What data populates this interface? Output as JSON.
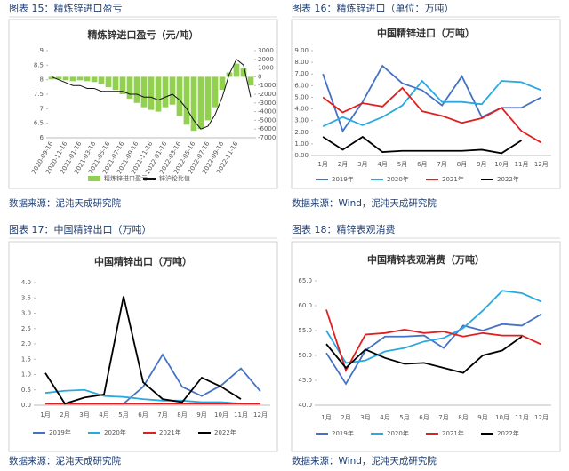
{
  "chart_data": [
    {
      "type": "combo",
      "caption": "图表 15：精炼锌进口盈亏",
      "title": "精炼锌进口盈亏（元/吨）",
      "source": "数据来源：泥沌天成研究院",
      "categories": [
        "2020-09-16",
        null,
        "2020-11-16",
        null,
        "2021-01-16",
        null,
        "2021-03-16",
        null,
        "2021-05-16",
        null,
        "2021-07-16",
        null,
        "2021-09-16",
        null,
        "2021-11-16",
        null,
        "2022-01-16",
        null,
        "2022-03-16",
        null,
        "2022-05-16",
        null,
        "2022-07-16",
        null,
        "2022-09-16",
        null,
        "2022-11-16",
        null,
        null
      ],
      "ylim": [
        6,
        9
      ],
      "yticks": [
        6,
        6.5,
        7,
        7.5,
        8,
        8.5,
        9
      ],
      "y2lim": [
        -7000,
        3000
      ],
      "y2ticks": [
        3000,
        2000,
        1000,
        0,
        -1000,
        -2000,
        -3000,
        -4000,
        -5000,
        -6000,
        -7000
      ],
      "series": [
        {
          "name": "精炼锌进口盈亏",
          "kind": "bar",
          "axis": "y2",
          "color": "#92d050",
          "values": [
            -300,
            -300,
            -400,
            -500,
            -400,
            -500,
            -600,
            -800,
            -1200,
            -1500,
            -2000,
            -2500,
            -3000,
            -3500,
            -3800,
            -4000,
            -3500,
            -3200,
            -4500,
            -5500,
            -6200,
            -6000,
            -5000,
            -3500,
            -1500,
            500,
            1500,
            1000,
            -1000
          ]
        },
        {
          "name": "锌沪伦比值",
          "kind": "line",
          "color": "#111111",
          "values": [
            8.1,
            8.0,
            7.9,
            7.8,
            7.8,
            7.7,
            7.7,
            7.6,
            7.6,
            7.6,
            7.6,
            7.5,
            7.5,
            7.4,
            7.4,
            7.3,
            7.4,
            7.5,
            7.3,
            7.0,
            6.6,
            6.3,
            6.4,
            6.8,
            7.4,
            8.2,
            8.7,
            8.5,
            7.4
          ]
        }
      ]
    },
    {
      "type": "line",
      "caption": "图表 16：精炼锌进口（单位：万吨）",
      "title": "中国精锌进口（万吨）",
      "source": "数据来源：Wind，泥沌天成研究院",
      "categories": [
        "1月",
        "2月",
        "3月",
        "4月",
        "5月",
        "6月",
        "7月",
        "8月",
        "9月",
        "10月",
        "11月",
        "12月"
      ],
      "ylim": [
        0,
        9
      ],
      "yticks": [
        {
          "value": 0,
          "label": "0.00"
        },
        {
          "value": 1,
          "label": "1.00"
        },
        {
          "value": 2,
          "label": "2.00"
        },
        {
          "value": 3,
          "label": "3.00"
        },
        {
          "value": 4,
          "label": "4.00"
        },
        {
          "value": 5,
          "label": "5.00"
        },
        {
          "value": 6,
          "label": "6.00"
        },
        {
          "value": 7,
          "label": "7.00"
        },
        {
          "value": 8,
          "label": "8.00"
        },
        {
          "value": 9,
          "label": "9.00"
        }
      ],
      "series": [
        {
          "name": "2019年",
          "color": "#4472c4",
          "values": [
            7.0,
            2.1,
            4.6,
            7.7,
            6.2,
            5.6,
            4.3,
            6.8,
            3.3,
            4.1,
            4.1,
            5.0
          ]
        },
        {
          "name": "2020年",
          "color": "#2aa9e0",
          "values": [
            2.5,
            3.3,
            2.6,
            3.3,
            4.3,
            6.4,
            4.6,
            4.6,
            4.4,
            6.4,
            6.3,
            5.6
          ]
        },
        {
          "name": "2021年",
          "color": "#e02020",
          "values": [
            5.0,
            3.7,
            4.5,
            4.2,
            5.8,
            3.8,
            3.4,
            2.8,
            3.2,
            4.1,
            2.1,
            1.1
          ]
        },
        {
          "name": "2022年",
          "color": "#000000",
          "values": [
            1.6,
            0.5,
            1.6,
            0.3,
            0.4,
            0.4,
            0.4,
            0.4,
            0.5,
            0.2,
            1.3,
            null
          ]
        }
      ]
    },
    {
      "type": "line",
      "caption": "图表 17：中国精锌出口（万吨）",
      "title": "中国精锌出口（万吨）",
      "source": "数据来源：泥沌天成研究院",
      "categories": [
        "1月",
        "2月",
        "3月",
        "4月",
        "5月",
        "6月",
        "7月",
        "8月",
        "9月",
        "10月",
        "11月",
        "12月"
      ],
      "ylim": [
        0,
        4
      ],
      "yticks": [
        {
          "value": 0,
          "label": "0.0"
        },
        0.5,
        {
          "value": 1,
          "label": "1.0"
        },
        1.5,
        {
          "value": 2,
          "label": "2.0"
        },
        2.5,
        {
          "value": 3,
          "label": "3.0"
        },
        3.5,
        {
          "value": 4,
          "label": "4.0"
        }
      ],
      "series": [
        {
          "name": "2019年",
          "color": "#4472c4",
          "values": [
            0.05,
            0.05,
            0.05,
            0.05,
            0.05,
            0.6,
            1.65,
            0.6,
            0.3,
            0.65,
            1.2,
            0.45
          ]
        },
        {
          "name": "2020年",
          "color": "#2aa9e0",
          "values": [
            0.4,
            0.47,
            0.5,
            0.3,
            0.27,
            0.2,
            0.15,
            0.15,
            0.1,
            0.1,
            0.05,
            0.05
          ]
        },
        {
          "name": "2021年",
          "color": "#e02020",
          "values": [
            0.05,
            0.05,
            0.05,
            0.05,
            0.05,
            0.05,
            0.05,
            0.05,
            0.05,
            0.05,
            0.05,
            0.05
          ]
        },
        {
          "name": "2022年",
          "color": "#000000",
          "values": [
            1.05,
            0.05,
            0.25,
            0.35,
            3.55,
            0.75,
            0.2,
            0.1,
            0.9,
            0.6,
            0.2,
            null
          ]
        }
      ]
    },
    {
      "type": "line",
      "caption": "图表 18：精锌表观消费",
      "title": "中国精锌表观消费（万吨）",
      "source": "数据来源：Wind，泥沌天成研究院",
      "categories": [
        "1月",
        "2月",
        "3月",
        "4月",
        "5月",
        "6月",
        "7月",
        "8月",
        "9月",
        "10月",
        "11月",
        "12月"
      ],
      "ylim": [
        40,
        65
      ],
      "yticks": [
        {
          "value": 40,
          "label": "40.0"
        },
        {
          "value": 45,
          "label": "45.0"
        },
        {
          "value": 50,
          "label": "50.0"
        },
        {
          "value": 55,
          "label": "55.0"
        },
        {
          "value": 60,
          "label": "60.0"
        },
        {
          "value": 65,
          "label": "65.0"
        }
      ],
      "series": [
        {
          "name": "2019年",
          "color": "#4472c4",
          "values": [
            50.5,
            44.3,
            51.0,
            53.8,
            53.8,
            54.0,
            51.5,
            56.0,
            55.0,
            56.3,
            56.0,
            58.3
          ]
        },
        {
          "name": "2020年",
          "color": "#2aa9e0",
          "values": [
            55.0,
            48.5,
            49.0,
            50.8,
            51.5,
            52.8,
            53.5,
            55.5,
            59.0,
            63.0,
            62.5,
            60.8
          ]
        },
        {
          "name": "2021年",
          "color": "#e02020",
          "values": [
            59.2,
            47.0,
            54.2,
            54.5,
            55.2,
            54.5,
            54.8,
            53.8,
            54.5,
            54.0,
            54.0,
            52.2
          ]
        },
        {
          "name": "2022年",
          "color": "#000000",
          "values": [
            52.3,
            47.5,
            51.2,
            49.5,
            48.3,
            48.5,
            47.5,
            46.5,
            50.0,
            51.0,
            53.8,
            null
          ]
        }
      ]
    }
  ]
}
